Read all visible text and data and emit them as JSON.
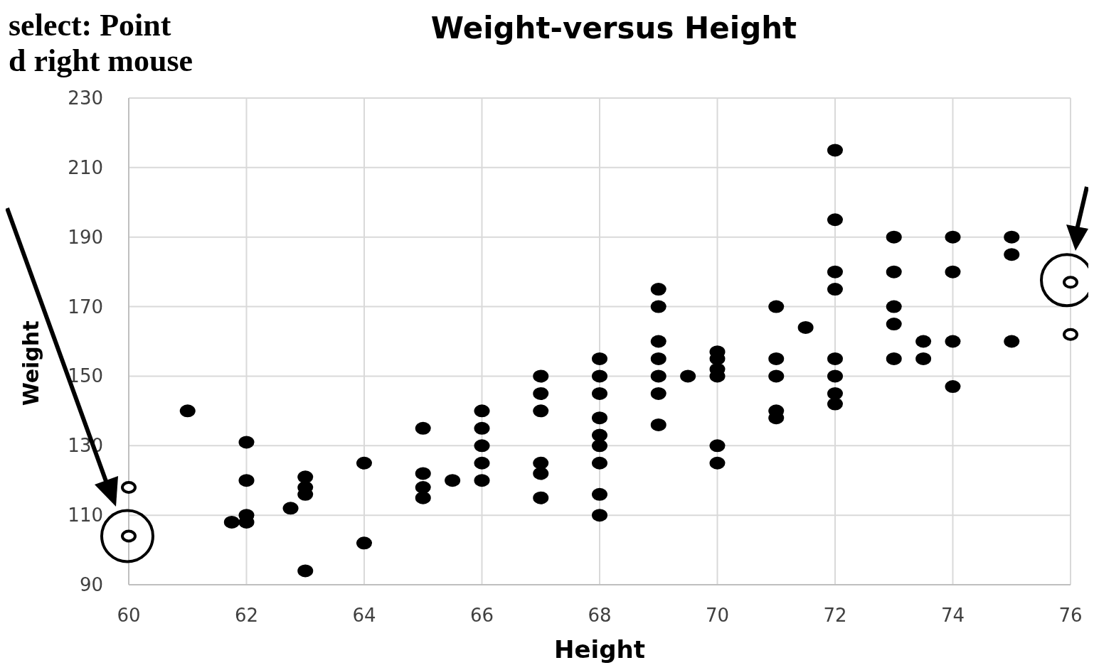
{
  "chart_data": {
    "type": "scatter",
    "title": "Weight-versus Height",
    "xlabel": "Height",
    "ylabel": "Weight",
    "annotations": [
      "select: Point",
      "d right mouse"
    ],
    "xlim": [
      60,
      76
    ],
    "xticks": [
      60,
      62,
      64,
      66,
      68,
      70,
      72,
      74,
      76
    ],
    "ylim": [
      90,
      230
    ],
    "yticks": [
      90,
      110,
      130,
      150,
      170,
      190,
      210,
      230
    ],
    "grid": true,
    "marker": "circle",
    "series": [
      {
        "color": "#000000",
        "x": [
          61,
          61.75,
          62,
          62,
          62,
          62,
          62.75,
          63,
          63,
          63,
          63,
          64,
          64,
          65,
          65,
          65,
          65,
          65.5,
          66,
          66,
          66,
          66,
          66,
          67,
          67,
          67,
          67,
          67,
          67,
          68,
          68,
          68,
          68,
          68,
          68,
          68,
          68,
          68,
          69,
          69,
          69,
          69,
          69,
          69,
          69,
          69.5,
          70,
          70,
          70,
          70,
          70,
          70,
          71,
          71,
          71,
          71,
          71,
          71.5,
          72,
          72,
          72,
          72,
          72,
          72,
          72,
          72,
          73,
          73,
          73,
          73,
          73,
          73.5,
          73.5,
          74,
          74,
          74,
          74,
          75,
          75,
          75
        ],
        "values": [
          140,
          108,
          131,
          120,
          110,
          108,
          112,
          121,
          118,
          116,
          94,
          125,
          102,
          135,
          122,
          118,
          115,
          120,
          140,
          135,
          130,
          125,
          120,
          150,
          145,
          140,
          125,
          122,
          115,
          155,
          150,
          145,
          138,
          133,
          130,
          125,
          116,
          110,
          175,
          170,
          160,
          155,
          150,
          145,
          136,
          150,
          157,
          155,
          152,
          150,
          130,
          125,
          170,
          155,
          150,
          140,
          138,
          164,
          215,
          195,
          180,
          175,
          155,
          150,
          145,
          142,
          190,
          180,
          170,
          165,
          155,
          160,
          155,
          190,
          180,
          160,
          147,
          190,
          185,
          160
        ]
      },
      {
        "color": "#ffffff",
        "x": [
          60,
          60,
          76,
          76
        ],
        "values": [
          118,
          104,
          177,
          162
        ]
      }
    ]
  }
}
